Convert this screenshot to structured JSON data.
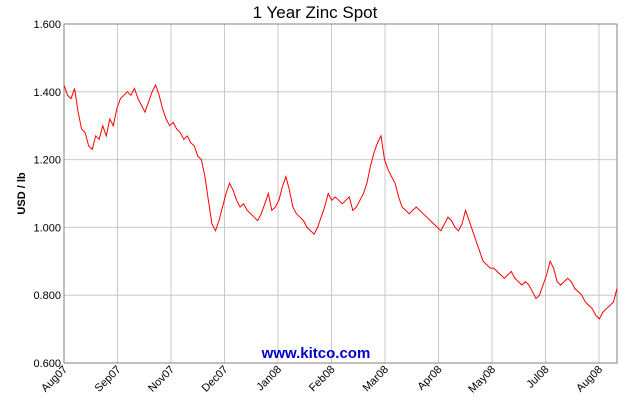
{
  "chart_data": {
    "type": "line",
    "title": "1 Year Zinc Spot",
    "ylabel": "USD / lb",
    "xlabel": "",
    "ylim": [
      0.6,
      1.6
    ],
    "y_ticks": [
      "0.600",
      "0.800",
      "1.000",
      "1.200",
      "1.400",
      "1.600"
    ],
    "x_ticks": [
      "Aug07",
      "Sep07",
      "Nov07",
      "Dec07",
      "Jan08",
      "Feb08",
      "Mar08",
      "Apr08",
      "May08",
      "Jul08",
      "Aug08"
    ],
    "grid": true,
    "legend": "none",
    "line_color": "#ff0000",
    "watermark": "www.kitco.com",
    "watermark_color": "#0000cc",
    "series": [
      {
        "values": [
          1.42,
          1.39,
          1.38,
          1.41,
          1.34,
          1.29,
          1.28,
          1.24,
          1.23,
          1.27,
          1.26,
          1.3,
          1.27,
          1.32,
          1.3,
          1.35,
          1.38,
          1.39,
          1.4,
          1.39,
          1.41,
          1.38,
          1.36,
          1.34,
          1.37,
          1.4,
          1.42,
          1.39,
          1.35,
          1.32,
          1.3,
          1.31,
          1.29,
          1.28,
          1.26,
          1.27,
          1.25,
          1.24,
          1.21,
          1.2,
          1.15,
          1.08,
          1.01,
          0.99,
          1.02,
          1.06,
          1.1,
          1.13,
          1.11,
          1.08,
          1.06,
          1.07,
          1.05,
          1.04,
          1.03,
          1.02,
          1.04,
          1.07,
          1.1,
          1.05,
          1.06,
          1.08,
          1.12,
          1.15,
          1.11,
          1.06,
          1.04,
          1.03,
          1.02,
          1.0,
          0.99,
          0.98,
          1.0,
          1.03,
          1.06,
          1.1,
          1.08,
          1.09,
          1.08,
          1.07,
          1.08,
          1.09,
          1.05,
          1.06,
          1.08,
          1.1,
          1.13,
          1.18,
          1.22,
          1.25,
          1.27,
          1.2,
          1.17,
          1.15,
          1.13,
          1.09,
          1.06,
          1.05,
          1.04,
          1.05,
          1.06,
          1.05,
          1.04,
          1.03,
          1.02,
          1.01,
          1.0,
          0.99,
          1.01,
          1.03,
          1.02,
          1.0,
          0.99,
          1.01,
          1.05,
          1.02,
          0.99,
          0.96,
          0.93,
          0.9,
          0.89,
          0.88,
          0.88,
          0.87,
          0.86,
          0.85,
          0.86,
          0.87,
          0.85,
          0.84,
          0.83,
          0.84,
          0.83,
          0.81,
          0.79,
          0.8,
          0.83,
          0.86,
          0.9,
          0.88,
          0.84,
          0.83,
          0.84,
          0.85,
          0.84,
          0.82,
          0.81,
          0.8,
          0.78,
          0.77,
          0.76,
          0.74,
          0.73,
          0.75,
          0.76,
          0.77,
          0.78,
          0.82
        ]
      }
    ]
  }
}
